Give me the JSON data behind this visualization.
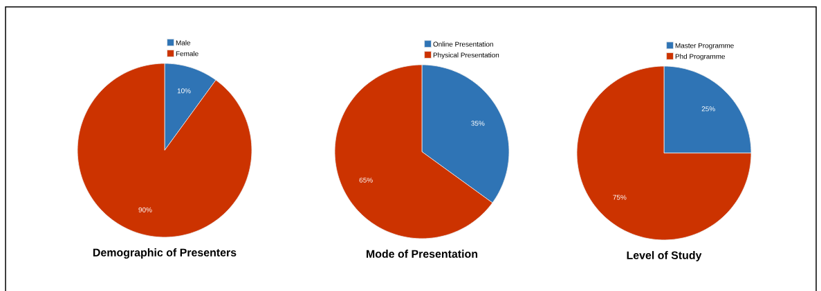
{
  "chart_data": [
    {
      "type": "pie",
      "title": "Demographic of Presenters",
      "categories": [
        "Male",
        "Female"
      ],
      "values": [
        10,
        90
      ],
      "colors": [
        "#2f74b5",
        "#cc3300"
      ],
      "value_labels": [
        "10%",
        "90%"
      ],
      "legend": "top"
    },
    {
      "type": "pie",
      "title": "Mode of Presentation",
      "categories": [
        "Online Presentation",
        "Physical Presentation"
      ],
      "values": [
        35,
        65
      ],
      "colors": [
        "#2f74b5",
        "#cc3300"
      ],
      "value_labels": [
        "35%",
        "65%"
      ],
      "legend": "top"
    },
    {
      "type": "pie",
      "title": "Level of Study",
      "categories": [
        "Master Programme",
        "Phd Programme"
      ],
      "values": [
        25,
        75
      ],
      "colors": [
        "#2f74b5",
        "#cc3300"
      ],
      "value_labels": [
        "25%",
        "75%"
      ],
      "legend": "top"
    }
  ]
}
